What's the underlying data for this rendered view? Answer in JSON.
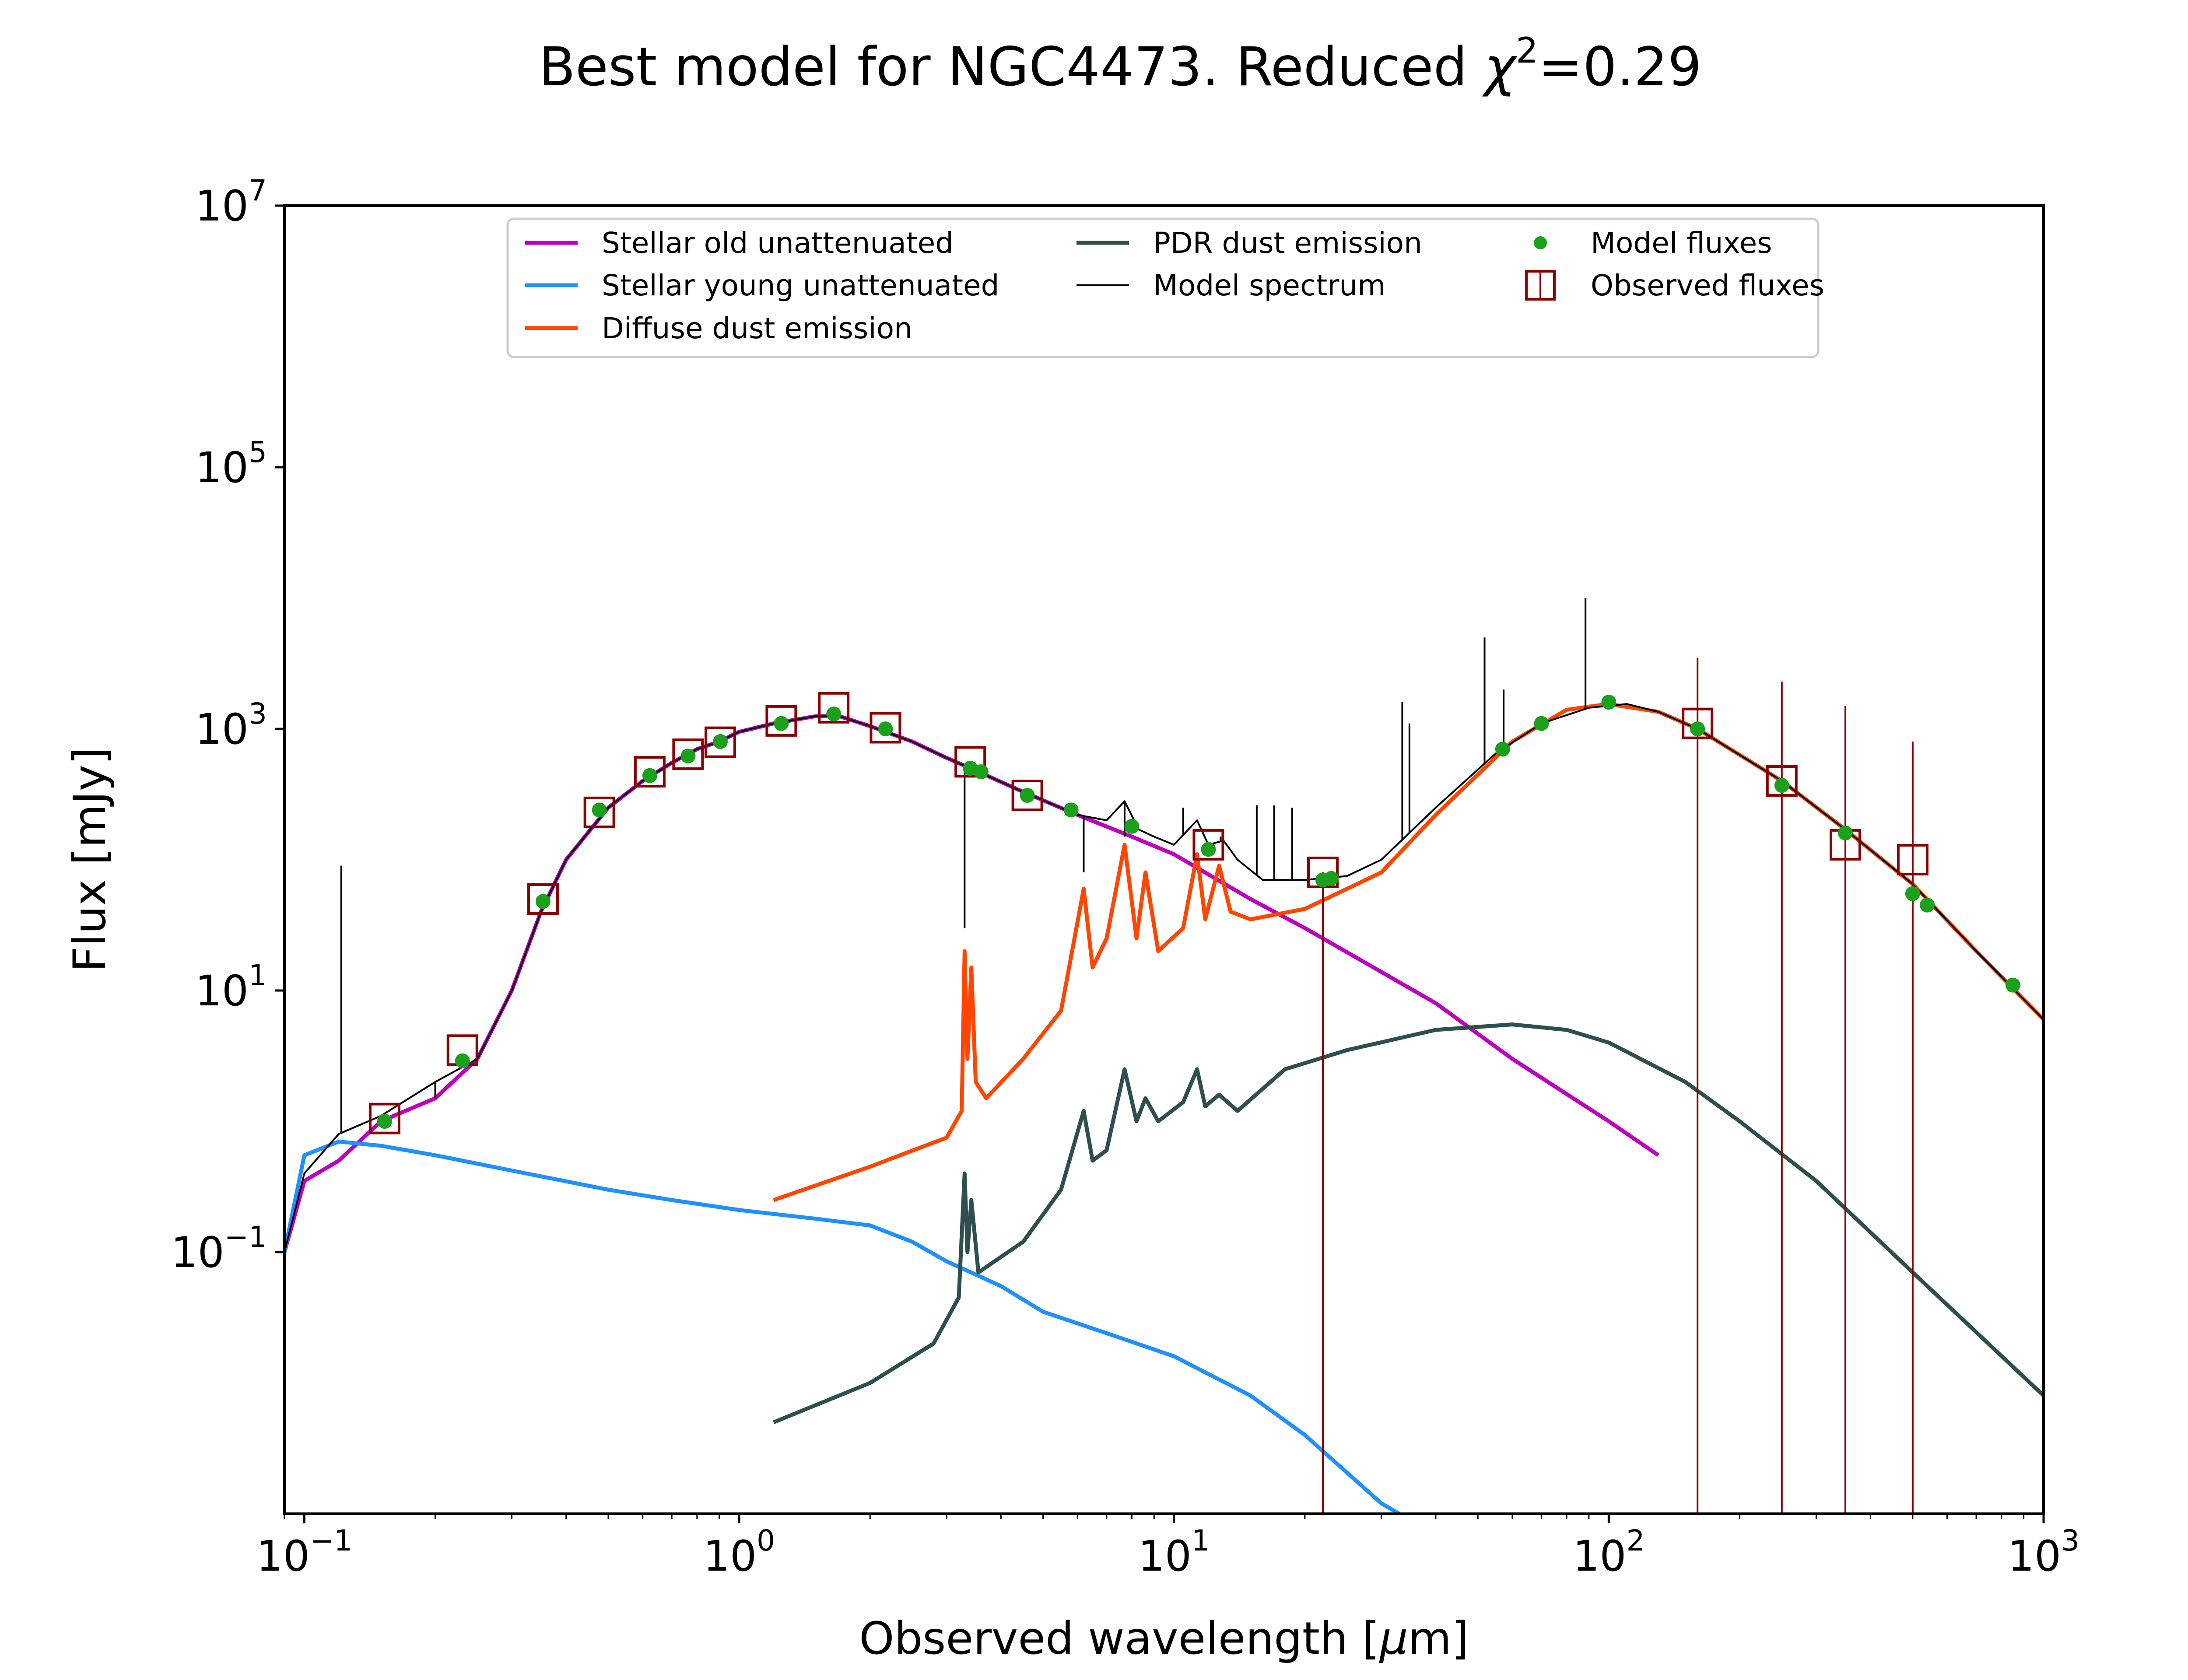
{
  "chart_data": {
    "type": "line",
    "title_prefix": "Best model for NGC4473. Reduced ",
    "title_symbol": "χ",
    "title_exponent": "2",
    "title_suffix": "=0.29",
    "xlabel_prefix": "Observed wavelength [",
    "xlabel_mu": "μ",
    "xlabel_suffix": "m]",
    "ylabel": "Flux [mJy]",
    "xscale": "log",
    "yscale": "log",
    "xlim": [
      0.09,
      1000
    ],
    "ylim": [
      0.001,
      10000000
    ],
    "grid": false,
    "legend_position": "top-center",
    "x_ticks": [
      {
        "base": "10",
        "exp": "−1",
        "value": 0.1
      },
      {
        "base": "10",
        "exp": "0",
        "value": 1
      },
      {
        "base": "10",
        "exp": "1",
        "value": 10
      },
      {
        "base": "10",
        "exp": "2",
        "value": 100
      },
      {
        "base": "10",
        "exp": "3",
        "value": 1000
      }
    ],
    "y_ticks": [
      {
        "base": "10",
        "exp": "−1",
        "value": 0.1
      },
      {
        "base": "10",
        "exp": "1",
        "value": 10
      },
      {
        "base": "10",
        "exp": "3",
        "value": 1000
      },
      {
        "base": "10",
        "exp": "5",
        "value": 100000
      },
      {
        "base": "10",
        "exp": "7",
        "value": 10000000
      }
    ],
    "series": [
      {
        "name": "Stellar old unattenuated",
        "color": "#bf00bf",
        "kind": "line",
        "points": [
          [
            0.09,
            0.1
          ],
          [
            0.1,
            0.35
          ],
          [
            0.12,
            0.5
          ],
          [
            0.15,
            1.0
          ],
          [
            0.2,
            1.5
          ],
          [
            0.25,
            3.0
          ],
          [
            0.3,
            10
          ],
          [
            0.35,
            40
          ],
          [
            0.4,
            100
          ],
          [
            0.5,
            250
          ],
          [
            0.6,
            400
          ],
          [
            0.7,
            550
          ],
          [
            0.8,
            700
          ],
          [
            0.9,
            800
          ],
          [
            1.0,
            950
          ],
          [
            1.2,
            1100
          ],
          [
            1.5,
            1250
          ],
          [
            1.7,
            1250
          ],
          [
            2.0,
            1050
          ],
          [
            2.5,
            800
          ],
          [
            3.0,
            600
          ],
          [
            3.5,
            480
          ],
          [
            4.5,
            330
          ],
          [
            6,
            220
          ],
          [
            8,
            150
          ],
          [
            10,
            110
          ],
          [
            15,
            50
          ],
          [
            20,
            30
          ],
          [
            40,
            8
          ],
          [
            60,
            3
          ],
          [
            100,
            1.0
          ],
          [
            130,
            0.55
          ]
        ]
      },
      {
        "name": "Stellar young unattenuated",
        "color": "#1e90ff",
        "kind": "line",
        "points": [
          [
            0.09,
            0.1
          ],
          [
            0.1,
            0.55
          ],
          [
            0.12,
            0.7
          ],
          [
            0.15,
            0.65
          ],
          [
            0.2,
            0.55
          ],
          [
            0.3,
            0.42
          ],
          [
            0.5,
            0.3
          ],
          [
            0.7,
            0.25
          ],
          [
            1.0,
            0.21
          ],
          [
            1.5,
            0.18
          ],
          [
            2.0,
            0.16
          ],
          [
            2.5,
            0.12
          ],
          [
            3.0,
            0.085
          ],
          [
            4.0,
            0.055
          ],
          [
            5.0,
            0.035
          ],
          [
            7.0,
            0.024
          ],
          [
            10,
            0.016
          ],
          [
            15,
            0.008
          ],
          [
            20,
            0.004
          ],
          [
            30,
            0.0012
          ],
          [
            33,
            0.001
          ]
        ]
      },
      {
        "name": "Diffuse dust emission",
        "color": "#ff4500",
        "kind": "line",
        "points": [
          [
            1.2,
            0.25
          ],
          [
            2.0,
            0.45
          ],
          [
            3.0,
            0.75
          ],
          [
            3.25,
            1.2
          ],
          [
            3.3,
            20
          ],
          [
            3.35,
            3
          ],
          [
            3.42,
            15
          ],
          [
            3.5,
            2
          ],
          [
            3.7,
            1.5
          ],
          [
            4.5,
            3
          ],
          [
            5.5,
            7
          ],
          [
            6.2,
            60
          ],
          [
            6.5,
            15
          ],
          [
            7.0,
            25
          ],
          [
            7.7,
            130
          ],
          [
            8.2,
            25
          ],
          [
            8.6,
            80
          ],
          [
            9.2,
            20
          ],
          [
            10.5,
            30
          ],
          [
            11.3,
            110
          ],
          [
            11.8,
            35
          ],
          [
            12.7,
            90
          ],
          [
            13.5,
            40
          ],
          [
            15,
            35
          ],
          [
            20,
            42
          ],
          [
            30,
            80
          ],
          [
            40,
            220
          ],
          [
            60,
            800
          ],
          [
            80,
            1400
          ],
          [
            100,
            1550
          ],
          [
            130,
            1350
          ],
          [
            160,
            1000
          ],
          [
            250,
            400
          ],
          [
            350,
            170
          ],
          [
            500,
            65
          ],
          [
            700,
            20
          ],
          [
            1000,
            6
          ]
        ]
      },
      {
        "name": "PDR dust emission",
        "color": "#2f4f4f",
        "kind": "line",
        "points": [
          [
            1.2,
            0.005
          ],
          [
            2.0,
            0.01
          ],
          [
            2.8,
            0.02
          ],
          [
            3.2,
            0.045
          ],
          [
            3.3,
            0.4
          ],
          [
            3.35,
            0.1
          ],
          [
            3.42,
            0.25
          ],
          [
            3.55,
            0.07
          ],
          [
            4.5,
            0.12
          ],
          [
            5.5,
            0.3
          ],
          [
            6.2,
            1.2
          ],
          [
            6.5,
            0.5
          ],
          [
            7.0,
            0.6
          ],
          [
            7.7,
            2.5
          ],
          [
            8.2,
            1.0
          ],
          [
            8.6,
            1.5
          ],
          [
            9.2,
            1.0
          ],
          [
            10.5,
            1.4
          ],
          [
            11.3,
            2.5
          ],
          [
            11.8,
            1.3
          ],
          [
            12.7,
            1.6
          ],
          [
            14,
            1.2
          ],
          [
            18,
            2.5
          ],
          [
            25,
            3.5
          ],
          [
            40,
            5
          ],
          [
            60,
            5.5
          ],
          [
            80,
            5
          ],
          [
            100,
            4
          ],
          [
            150,
            2
          ],
          [
            200,
            1.0
          ],
          [
            300,
            0.35
          ],
          [
            500,
            0.07
          ],
          [
            1000,
            0.008
          ]
        ]
      },
      {
        "name": "Model spectrum",
        "color": "#000000",
        "kind": "line",
        "points": [
          [
            0.09,
            0.1
          ],
          [
            0.1,
            0.4
          ],
          [
            0.12,
            0.8
          ],
          [
            0.15,
            1.1
          ],
          [
            0.2,
            2.0
          ],
          [
            0.25,
            3.0
          ],
          [
            0.3,
            10
          ],
          [
            0.35,
            40
          ],
          [
            0.4,
            100
          ],
          [
            0.5,
            250
          ],
          [
            0.6,
            400
          ],
          [
            0.7,
            550
          ],
          [
            0.8,
            700
          ],
          [
            0.9,
            800
          ],
          [
            1.0,
            950
          ],
          [
            1.2,
            1100
          ],
          [
            1.5,
            1250
          ],
          [
            1.7,
            1250
          ],
          [
            2.0,
            1050
          ],
          [
            2.5,
            800
          ],
          [
            3.0,
            600
          ],
          [
            3.5,
            480
          ],
          [
            4.5,
            330
          ],
          [
            6,
            220
          ],
          [
            7,
            200
          ],
          [
            7.7,
            280
          ],
          [
            8.3,
            170
          ],
          [
            9,
            150
          ],
          [
            10,
            130
          ],
          [
            11.3,
            200
          ],
          [
            12,
            130
          ],
          [
            13,
            140
          ],
          [
            14,
            100
          ],
          [
            16,
            70
          ],
          [
            20,
            70
          ],
          [
            25,
            75
          ],
          [
            30,
            100
          ],
          [
            40,
            250
          ],
          [
            55,
            650
          ],
          [
            70,
            1100
          ],
          [
            90,
            1450
          ],
          [
            110,
            1550
          ],
          [
            130,
            1350
          ],
          [
            160,
            1000
          ],
          [
            250,
            400
          ],
          [
            350,
            170
          ],
          [
            500,
            65
          ],
          [
            700,
            20
          ],
          [
            1000,
            6
          ]
        ],
        "emission_lines": [
          [
            0.1216,
            90
          ],
          [
            0.2,
            1.5
          ],
          [
            3.3,
            30
          ],
          [
            6.2,
            80
          ],
          [
            7.7,
            150
          ],
          [
            10.5,
            250
          ],
          [
            12.8,
            150
          ],
          [
            15.5,
            260
          ],
          [
            17.0,
            260
          ],
          [
            18.7,
            250
          ],
          [
            33.5,
            1600
          ],
          [
            34.8,
            1100
          ],
          [
            51.8,
            5000
          ],
          [
            57.3,
            2000
          ],
          [
            88.4,
            10000
          ]
        ]
      },
      {
        "name": "Model fluxes",
        "color": "#1aa01a",
        "kind": "points",
        "points": [
          [
            0.153,
            1.0
          ],
          [
            0.231,
            2.9
          ],
          [
            0.354,
            48
          ],
          [
            0.477,
            240
          ],
          [
            0.623,
            440
          ],
          [
            0.763,
            620
          ],
          [
            0.905,
            800
          ],
          [
            1.25,
            1100
          ],
          [
            1.65,
            1300
          ],
          [
            2.17,
            1000
          ],
          [
            3.4,
            500
          ],
          [
            3.6,
            470
          ],
          [
            4.6,
            310
          ],
          [
            5.8,
            240
          ],
          [
            8.0,
            180
          ],
          [
            12,
            120
          ],
          [
            22,
            70
          ],
          [
            23,
            72
          ],
          [
            57,
            700
          ],
          [
            70,
            1100
          ],
          [
            100,
            1600
          ],
          [
            160,
            1000
          ],
          [
            250,
            370
          ],
          [
            350,
            160
          ],
          [
            500,
            55
          ],
          [
            540,
            45
          ],
          [
            850,
            11
          ]
        ]
      },
      {
        "name": "Observed fluxes",
        "color": "#8b0000",
        "kind": "squares",
        "points": [
          [
            0.153,
            1.05
          ],
          [
            0.231,
            3.5
          ],
          [
            0.354,
            50
          ],
          [
            0.477,
            230
          ],
          [
            0.623,
            470
          ],
          [
            0.763,
            640
          ],
          [
            0.905,
            790
          ],
          [
            1.25,
            1150
          ],
          [
            1.65,
            1450
          ],
          [
            2.17,
            1020
          ],
          [
            3.4,
            560
          ],
          [
            4.6,
            310
          ],
          [
            12,
            130
          ],
          [
            22,
            80
          ],
          [
            160,
            1100
          ],
          [
            250,
            400
          ],
          [
            350,
            130
          ],
          [
            500,
            100
          ]
        ],
        "upper_error_bars": [
          [
            22,
            0.001,
            80
          ],
          [
            160,
            0.001,
            3500
          ],
          [
            250,
            0.001,
            2300
          ],
          [
            350,
            0.001,
            1500
          ],
          [
            500,
            0.001,
            800
          ]
        ]
      }
    ]
  }
}
